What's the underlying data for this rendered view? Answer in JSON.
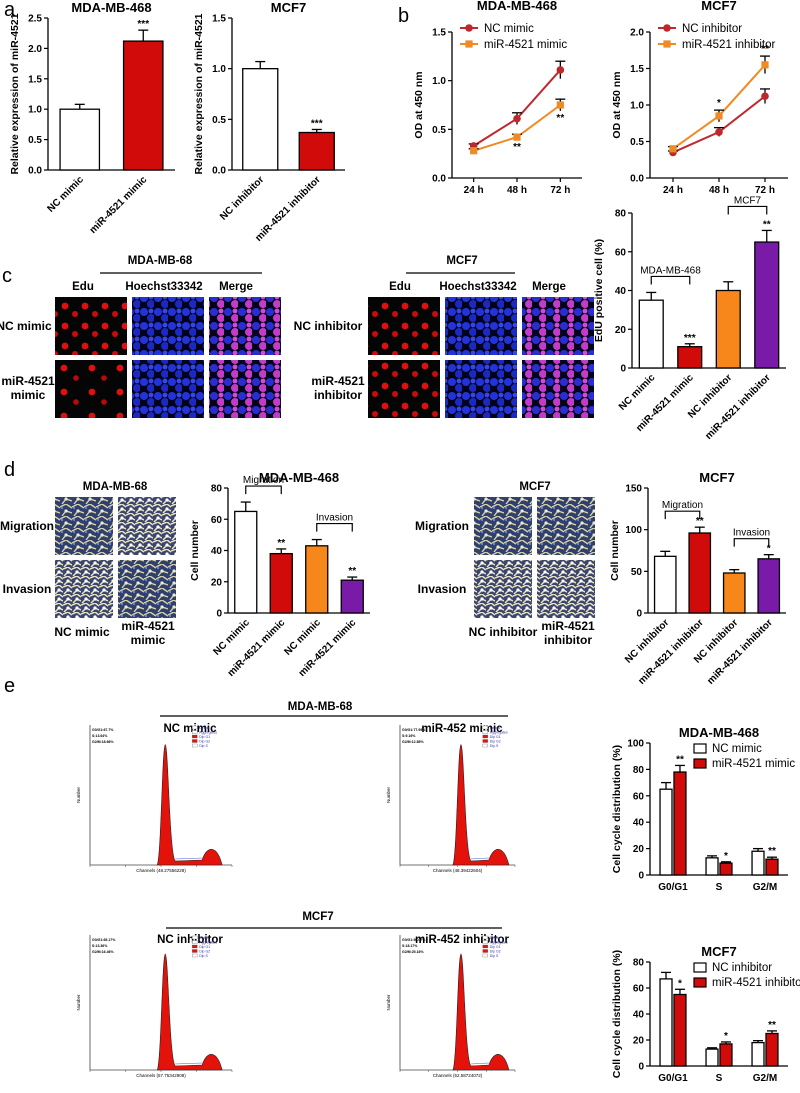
{
  "panel_letters": {
    "a": "a",
    "b": "b",
    "c": "c",
    "d": "d",
    "e": "e"
  },
  "colors": {
    "white": "#ffffff",
    "red": "#d10a0a",
    "orange": "#f7861b",
    "purple": "#7a1aa8",
    "dark_red": "#c0272d",
    "orange_line": "#f08a24",
    "flow_fill": "#e3120b"
  },
  "panel_c": {
    "mda_title": "MDA-MB-68",
    "mcf7_title": "MCF7",
    "col_edu": "Edu",
    "col_hoechst": "Hoechst33342",
    "col_merge": "Merge",
    "rows_mda": [
      [
        "NC mimic"
      ],
      [
        "miR-4521",
        "mimic"
      ]
    ],
    "rows_mcf7": [
      [
        "NC inhibitor"
      ],
      [
        "miR-4521",
        "inhibitor"
      ]
    ]
  },
  "panel_d": {
    "mda_title": "MDA-MB-68",
    "mcf7_title": "MCF7",
    "row_migration": "Migration",
    "row_invasion": "Invasion",
    "mda_cols": [
      [
        "NC mimic"
      ],
      [
        "miR-4521",
        "mimic"
      ]
    ],
    "mcf7_cols": [
      [
        "NC inhibitor"
      ],
      [
        "miR-4521",
        "inhibitor"
      ]
    ]
  },
  "panel_e": {
    "mda_title": "MDA-MB-68",
    "mcf7_title": "MCF7",
    "plots": [
      {
        "label": "NC mimic",
        "info": [
          "G0/G1:67.7%",
          "S:13.64%",
          "G2/M:18.66%"
        ],
        "xaxis": "Channels (48.27556228)"
      },
      {
        "label": "miR-452 mimic",
        "info": [
          "G0/G1:77.99%",
          "S:9.16%",
          "G2/M:12.85%"
        ],
        "xaxis": "Channels (48.39422604)"
      },
      {
        "label": "NC inhibitor",
        "info": [
          "G0/G1:65.17%",
          "S:13.36%",
          "G2/M:16.46%"
        ],
        "xaxis": "Channels (57.75342908)"
      },
      {
        "label": "miR-452 inhibitor",
        "info": [
          "G0/G1:56.07%",
          "S:18.17%",
          "G2/M:25.16%"
        ],
        "xaxis": "Channels (52.58724072)"
      }
    ],
    "legend": [
      "Debris",
      "Aggregates",
      "Dip G1",
      "Dip G2",
      "Dip S"
    ],
    "ylabel": "Number"
  },
  "chart_data": [
    {
      "id": "a1",
      "type": "bar",
      "title": "MDA-MB-468",
      "ylabel": "Relative expression of miR-4521",
      "categories": [
        "NC mimic",
        "miR-4521 mimic"
      ],
      "values": [
        1.0,
        2.12
      ],
      "errors": [
        0.08,
        0.18
      ],
      "stars": [
        "",
        "***"
      ],
      "colors": [
        "#ffffff",
        "#d10a0a"
      ],
      "ylim": [
        0,
        2.5
      ],
      "yticks": [
        "0.0",
        "0.5",
        "1.0",
        "1.5",
        "2.0",
        "2.5"
      ]
    },
    {
      "id": "a2",
      "type": "bar",
      "title": "MCF7",
      "ylabel": "Relative expression of miR-4521",
      "categories": [
        "NC inhibitor",
        "miR-4521 inhibitor"
      ],
      "values": [
        1.0,
        0.37
      ],
      "errors": [
        0.07,
        0.03
      ],
      "stars": [
        "",
        "***"
      ],
      "colors": [
        "#ffffff",
        "#d10a0a"
      ],
      "ylim": [
        0,
        1.5
      ],
      "yticks": [
        "0.0",
        "0.5",
        "1.0",
        "1.5"
      ]
    },
    {
      "id": "b1",
      "type": "line",
      "title": "MDA-MB-468",
      "ylabel": "OD at 450 nm",
      "x": [
        "24 h",
        "48 h",
        "72 h"
      ],
      "ylim": [
        0,
        1.5
      ],
      "yticks": [
        "0.0",
        "0.5",
        "1.0",
        "1.5"
      ],
      "series": [
        {
          "name": "NC mimic",
          "values": [
            0.33,
            0.61,
            1.11
          ],
          "errors": [
            0.02,
            0.06,
            0.09
          ],
          "color": "#c0272d",
          "marker": "circle",
          "stars": [
            "",
            "",
            ""
          ]
        },
        {
          "name": "miR-4521 mimic",
          "values": [
            0.28,
            0.42,
            0.75
          ],
          "errors": [
            0.02,
            0.03,
            0.06
          ],
          "color": "#f08a24",
          "marker": "square",
          "stars": [
            "",
            "**",
            "**"
          ]
        }
      ]
    },
    {
      "id": "b2",
      "type": "line",
      "title": "MCF7",
      "ylabel": "OD at 450 nm",
      "x": [
        "24 h",
        "48 h",
        "72 h"
      ],
      "ylim": [
        0,
        2.0
      ],
      "yticks": [
        "0.0",
        "0.5",
        "1.0",
        "1.5",
        "2.0"
      ],
      "series": [
        {
          "name": "NC inhibitor",
          "values": [
            0.35,
            0.63,
            1.12
          ],
          "errors": [
            0.02,
            0.06,
            0.1
          ],
          "color": "#c0272d",
          "marker": "circle",
          "stars": [
            "",
            "",
            ""
          ]
        },
        {
          "name": "miR-4521 inhibitor",
          "values": [
            0.4,
            0.85,
            1.55
          ],
          "errors": [
            0.03,
            0.08,
            0.12
          ],
          "color": "#f08a24",
          "marker": "square",
          "stars": [
            "",
            "*",
            "**"
          ]
        }
      ]
    },
    {
      "id": "c",
      "type": "bar",
      "title": "",
      "ylabel": "EdU positive cell (%)",
      "categories": [
        "NC mimic",
        "miR-4521 mimic",
        "NC inhibitor",
        "miR-4521 inhibitor"
      ],
      "values": [
        35,
        11,
        40,
        65
      ],
      "errors": [
        4,
        1.5,
        4.5,
        6
      ],
      "stars": [
        "",
        "***",
        "",
        "**"
      ],
      "colors": [
        "#ffffff",
        "#d10a0a",
        "#f7861b",
        "#7a1aa8"
      ],
      "ylim": [
        0,
        80
      ],
      "yticks": [
        "0",
        "20",
        "40",
        "60",
        "80"
      ],
      "brackets": [
        {
          "label": "MDA-MB-468",
          "from": 0,
          "to": 1
        },
        {
          "label": "MCF7",
          "from": 2,
          "to": 3
        }
      ]
    },
    {
      "id": "d1",
      "type": "bar",
      "title": "MDA-MB-468",
      "ylabel": "Cell number",
      "categories": [
        "NC mimic",
        "miR-4521 mimic",
        "NC mimic",
        "miR-4521 mimic"
      ],
      "values": [
        65,
        38,
        43,
        21
      ],
      "errors": [
        6,
        3,
        4,
        2
      ],
      "stars": [
        "",
        "**",
        "",
        "**"
      ],
      "colors": [
        "#ffffff",
        "#d10a0a",
        "#f7861b",
        "#7a1aa8"
      ],
      "ylim": [
        0,
        80
      ],
      "yticks": [
        "0",
        "20",
        "40",
        "60",
        "80"
      ],
      "brackets": [
        {
          "label": "Migration",
          "from": 0,
          "to": 1
        },
        {
          "label": "Invasion",
          "from": 2,
          "to": 3
        }
      ]
    },
    {
      "id": "d2",
      "type": "bar",
      "title": "MCF7",
      "ylabel": "Cell number",
      "categories": [
        "NC inhibitor",
        "miR-4521 inhibitor",
        "NC inhibitor",
        "miR-4521 inhibitor"
      ],
      "values": [
        68,
        96,
        48,
        65
      ],
      "errors": [
        6,
        7,
        4,
        5
      ],
      "stars": [
        "",
        "**",
        "",
        "*"
      ],
      "colors": [
        "#ffffff",
        "#d10a0a",
        "#f7861b",
        "#7a1aa8"
      ],
      "ylim": [
        0,
        150
      ],
      "yticks": [
        "0",
        "50",
        "100",
        "150"
      ],
      "brackets": [
        {
          "label": "Migration",
          "from": 0,
          "to": 1
        },
        {
          "label": "Invasion",
          "from": 2,
          "to": 3
        }
      ]
    },
    {
      "id": "e1",
      "type": "bar",
      "title": "MDA-MB-468",
      "ylabel": "Cell cycle distribution (%)",
      "categories": [
        "G0/G1",
        "S",
        "G2/M"
      ],
      "series": [
        {
          "name": "NC mimic",
          "values": [
            65,
            13,
            18
          ],
          "errors": [
            5,
            1.5,
            2
          ],
          "color": "#ffffff",
          "stars": [
            "",
            "",
            ""
          ]
        },
        {
          "name": "miR-4521 mimic",
          "values": [
            78,
            9,
            12
          ],
          "errors": [
            5,
            1,
            1.5
          ],
          "color": "#d10a0a",
          "stars": [
            "**",
            "*",
            "**"
          ]
        }
      ],
      "ylim": [
        0,
        100
      ],
      "yticks": [
        "0",
        "20",
        "40",
        "60",
        "80",
        "100"
      ]
    },
    {
      "id": "e2",
      "type": "bar",
      "title": "MCF7",
      "ylabel": "Cell cycle distribution (%)",
      "categories": [
        "G0/G1",
        "S",
        "G2/M"
      ],
      "series": [
        {
          "name": "NC inhibitor",
          "values": [
            67,
            13,
            18
          ],
          "errors": [
            5,
            1,
            1.5
          ],
          "color": "#ffffff",
          "stars": [
            "",
            "",
            ""
          ]
        },
        {
          "name": "miR-4521 inhibitor",
          "values": [
            55,
            17,
            25
          ],
          "errors": [
            4,
            1.5,
            2
          ],
          "color": "#d10a0a",
          "stars": [
            "*",
            "*",
            "**"
          ]
        }
      ],
      "ylim": [
        0,
        80
      ],
      "yticks": [
        "0",
        "20",
        "40",
        "60",
        "80"
      ]
    }
  ]
}
